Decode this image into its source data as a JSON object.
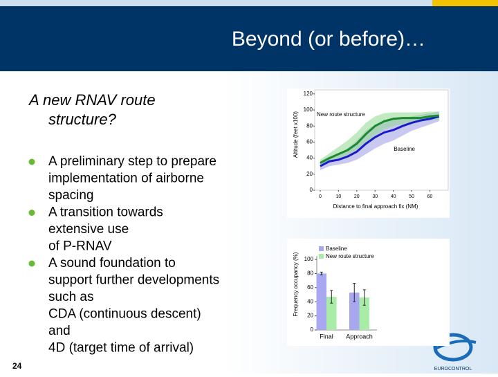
{
  "slide": {
    "title": "Beyond (or before)…",
    "subtitle": [
      "A new RNAV route",
      "structure?"
    ],
    "bullets": [
      [
        "A preliminary step to prepare",
        "implementation of airborne",
        "spacing"
      ],
      [
        "A transition towards",
        "extensive use",
        "of P-RNAV"
      ],
      [
        "A sound foundation to",
        "support further developments",
        "such as",
        "CDA (continuous descent)",
        "and",
        "4D (target time of arrival)"
      ]
    ],
    "page_number": "24",
    "logo": "EUROCONTROL"
  },
  "chart_data": [
    {
      "type": "line",
      "x_label": "Distance to final approach fix (NM)",
      "y_label": "Altitude (feet x100)",
      "x": [
        0,
        5,
        10,
        15,
        20,
        25,
        30,
        35,
        40,
        45,
        50,
        55,
        60,
        65
      ],
      "xlim": [
        -3,
        70
      ],
      "xticks": [
        0,
        10,
        20,
        30,
        40,
        50,
        60
      ],
      "ylim": [
        0,
        125
      ],
      "yticks": [
        0,
        20,
        40,
        60,
        80,
        100,
        120
      ],
      "series": [
        {
          "name": "Baseline",
          "color": "#1a1acc",
          "band_color": "#9a9ae6",
          "values": [
            30,
            36,
            38,
            42,
            48,
            58,
            66,
            72,
            75,
            80,
            84,
            87,
            89,
            92
          ],
          "low": [
            25,
            30,
            32,
            34,
            38,
            45,
            52,
            58,
            62,
            68,
            74,
            78,
            82,
            86
          ],
          "high": [
            36,
            42,
            45,
            52,
            62,
            74,
            82,
            86,
            88,
            90,
            92,
            94,
            96,
            98
          ]
        },
        {
          "name": "New route structure",
          "color": "#1a8a2a",
          "band_color": "#8fd88f",
          "values": [
            34,
            40,
            45,
            50,
            58,
            70,
            80,
            86,
            89,
            90,
            90,
            90,
            92,
            93
          ],
          "low": [
            30,
            35,
            38,
            42,
            48,
            58,
            68,
            76,
            80,
            82,
            84,
            85,
            87,
            88
          ],
          "high": [
            38,
            46,
            54,
            62,
            72,
            84,
            92,
            96,
            97,
            97,
            97,
            97,
            98,
            98
          ]
        }
      ]
    },
    {
      "type": "bar",
      "y_label": "Frequency occupancy (%)",
      "categories": [
        "Final",
        "Approach"
      ],
      "ylim": [
        0,
        100
      ],
      "yticks": [
        0,
        20,
        40,
        60,
        80,
        100
      ],
      "series": [
        {
          "name": "Baseline",
          "color": "#a8a8f0",
          "values": [
            80,
            53
          ],
          "errors": [
            2,
            13
          ]
        },
        {
          "name": "New route structure",
          "color": "#a8eca8",
          "values": [
            47,
            46
          ],
          "errors": [
            9,
            11
          ]
        }
      ]
    }
  ]
}
